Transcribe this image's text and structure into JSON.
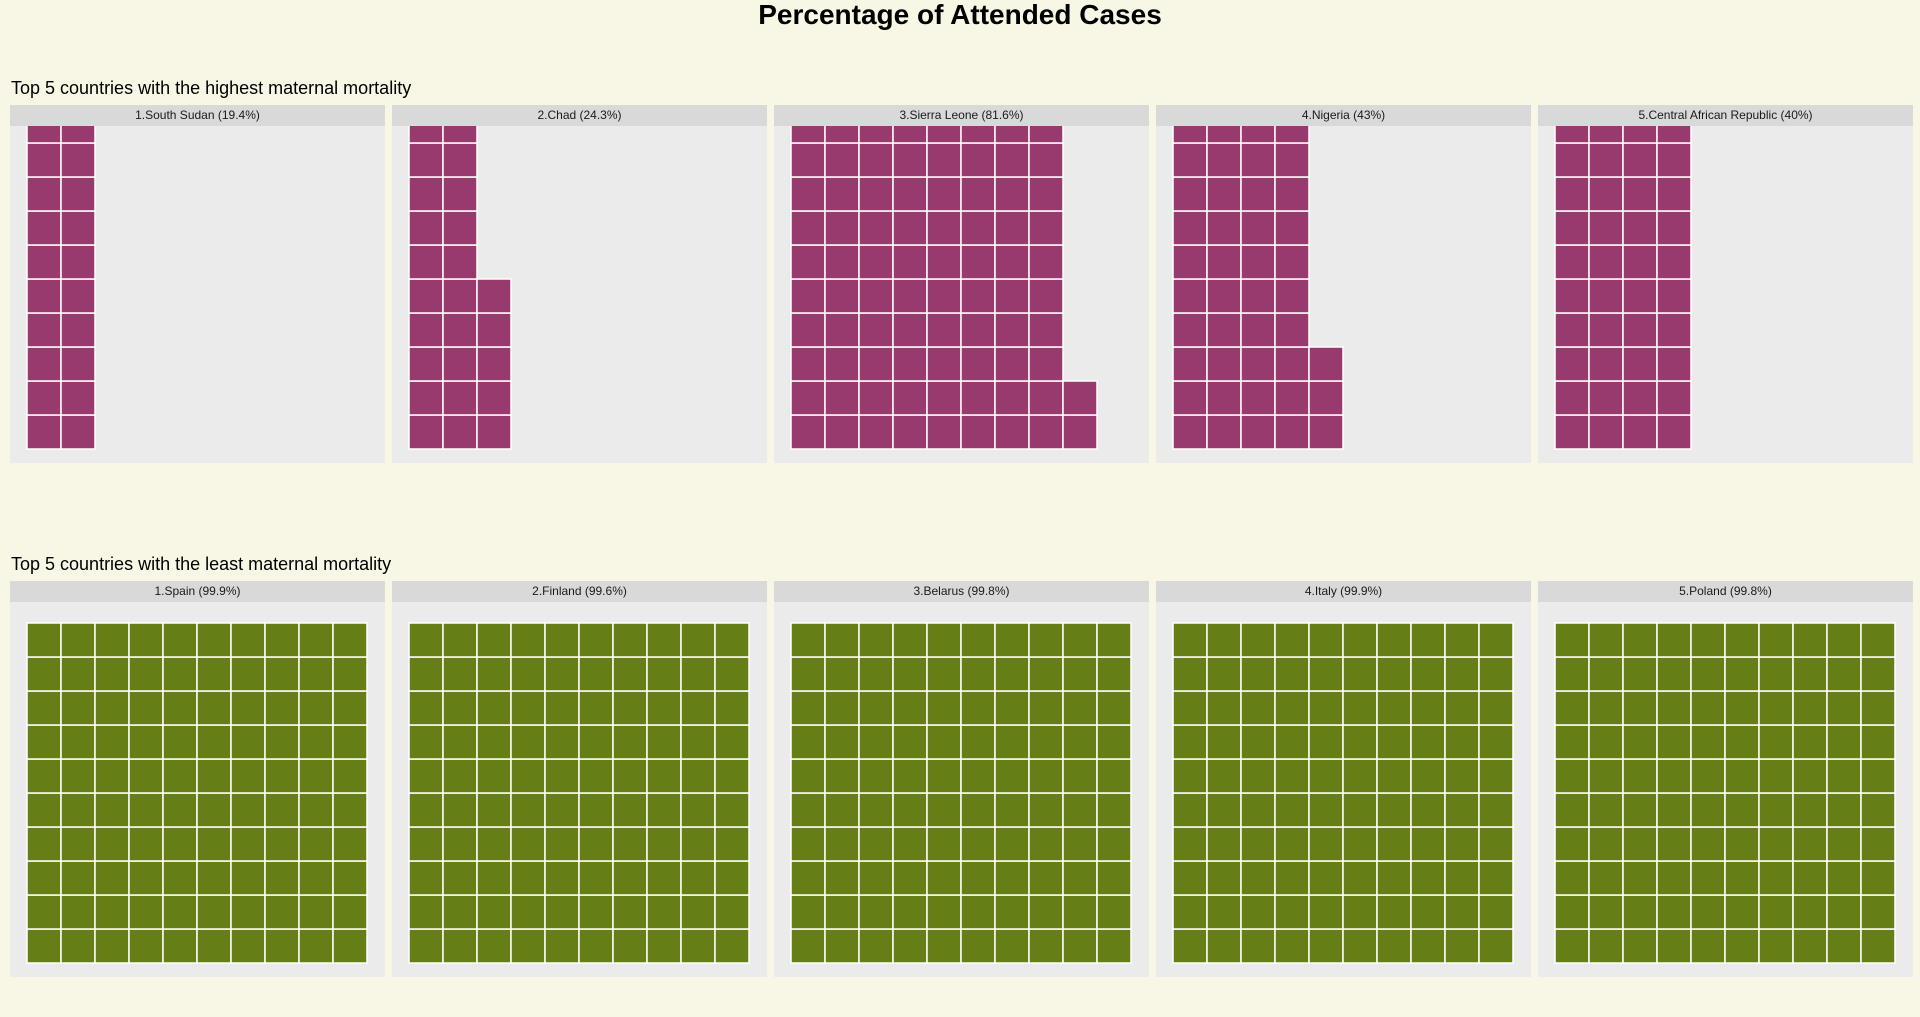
{
  "title": "Percentage of Attended Cases",
  "chart_data": [
    {
      "type": "waffle",
      "title": "Top 5 countries with the highest maternal mortality",
      "color": "#993a6f",
      "grid": {
        "rows": 10,
        "cols": 10
      },
      "panels": [
        {
          "label": "1.South Sudan (19.4%)",
          "value": 19.4,
          "squares": 20
        },
        {
          "label": "2.Chad (24.3%)",
          "value": 24.3,
          "squares": 25
        },
        {
          "label": "3.Sierra Leone (81.6%)",
          "value": 81.6,
          "squares": 82
        },
        {
          "label": "4.Nigeria (43%)",
          "value": 43,
          "squares": 43
        },
        {
          "label": "5.Central African Republic (40%)",
          "value": 40,
          "squares": 40
        }
      ]
    },
    {
      "type": "waffle",
      "title": "Top 5 countries with the least maternal mortality",
      "color": "#657f16",
      "grid": {
        "rows": 10,
        "cols": 10
      },
      "panels": [
        {
          "label": "1.Spain (99.9%)",
          "value": 99.9,
          "squares": 100
        },
        {
          "label": "2.Finland (99.6%)",
          "value": 99.6,
          "squares": 100
        },
        {
          "label": "3.Belarus (99.8%)",
          "value": 99.8,
          "squares": 100
        },
        {
          "label": "4.Italy (99.9%)",
          "value": 99.9,
          "squares": 100
        },
        {
          "label": "5.Poland (99.8%)",
          "value": 99.8,
          "squares": 100
        }
      ]
    }
  ]
}
